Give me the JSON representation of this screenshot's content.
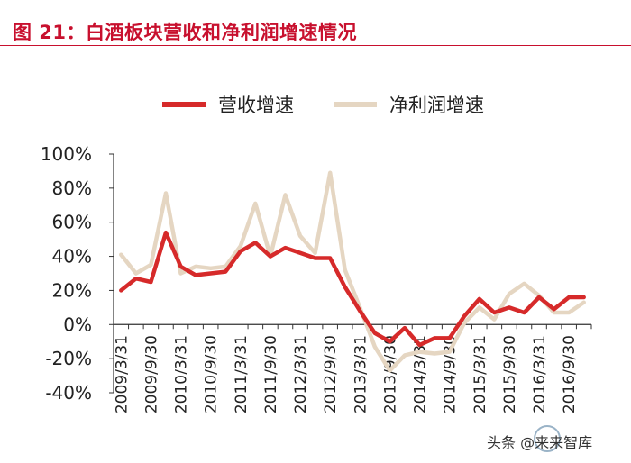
{
  "title": "图 21：白酒板块营收和净利润增速情况",
  "watermark": "头条 @来来智库",
  "colors": {
    "title": "#c8102e",
    "revenue": "#d62a2a",
    "profit": "#e5d6c2",
    "axis": "#333333"
  },
  "chart_data": {
    "type": "line",
    "title": "",
    "xlabel": "",
    "ylabel": "",
    "ylim": [
      -40,
      100
    ],
    "yticks": [
      "100%",
      "80%",
      "60%",
      "40%",
      "20%",
      "0%",
      "-20%",
      "-40%"
    ],
    "ytick_values": [
      100,
      80,
      60,
      40,
      20,
      0,
      -20,
      -40
    ],
    "grid": false,
    "legend_position": "top",
    "x": [
      "2009/3/31",
      "2009/6/30",
      "2009/9/30",
      "2009/12/31",
      "2010/3/31",
      "2010/6/30",
      "2010/9/30",
      "2010/12/31",
      "2011/3/31",
      "2011/6/30",
      "2011/9/30",
      "2011/12/31",
      "2012/3/31",
      "2012/6/30",
      "2012/9/30",
      "2012/12/31",
      "2013/3/31",
      "2013/6/30",
      "2013/9/30",
      "2013/12/31",
      "2014/3/31",
      "2014/6/30",
      "2014/9/30",
      "2014/12/31",
      "2015/3/31",
      "2015/6/30",
      "2015/9/30",
      "2015/12/31",
      "2016/3/31",
      "2016/6/30",
      "2016/9/30",
      "2016/12/31"
    ],
    "xtick_labels": [
      "2009/3/31",
      "2009/9/30",
      "2010/3/31",
      "2010/9/30",
      "2011/3/31",
      "2011/9/30",
      "2012/3/31",
      "2012/9/30",
      "2013/3/31",
      "2013/9/30",
      "2014/3/31",
      "2014/9/30",
      "2015/3/31",
      "2015/9/30",
      "2016/3/31",
      "2016/9/30"
    ],
    "series": [
      {
        "name": "营收增速",
        "values": [
          20,
          27,
          25,
          54,
          34,
          29,
          30,
          31,
          43,
          48,
          40,
          45,
          42,
          39,
          39,
          22,
          8,
          -5,
          -10,
          -2,
          -12,
          -8,
          -8,
          5,
          15,
          7,
          10,
          7,
          16,
          9,
          16,
          16
        ]
      },
      {
        "name": "净利润增速",
        "values": [
          41,
          30,
          35,
          77,
          30,
          34,
          33,
          34,
          46,
          71,
          40,
          76,
          52,
          42,
          89,
          32,
          10,
          -13,
          -27,
          -18,
          -16,
          -17,
          -16,
          1,
          10,
          3,
          18,
          24,
          17,
          7,
          7,
          13
        ]
      }
    ]
  }
}
